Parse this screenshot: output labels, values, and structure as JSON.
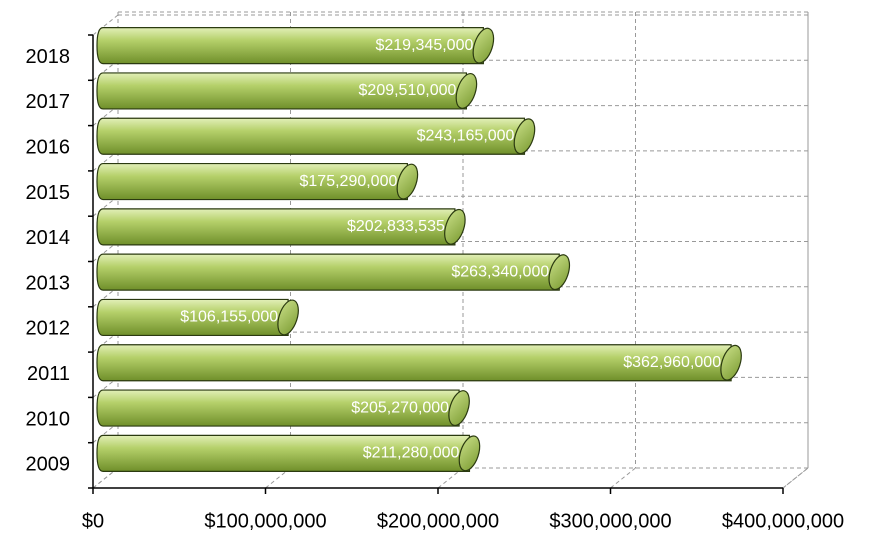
{
  "chart_data": {
    "type": "bar",
    "orientation": "horizontal",
    "categories": [
      "2009",
      "2010",
      "2011",
      "2012",
      "2013",
      "2014",
      "2015",
      "2016",
      "2017",
      "2018"
    ],
    "values": [
      211280000,
      205270000,
      362960000,
      106155000,
      263340000,
      202833535,
      175290000,
      243165000,
      209510000,
      219345000
    ],
    "value_labels": [
      "$211,280,000",
      "$205,270,000",
      "$362,960,000",
      "$106,155,000",
      "$263,340,000",
      "$202,833,535",
      "$175,290,000",
      "$243,165,000",
      "$209,510,000",
      "$219,345,000"
    ],
    "color": "#a8c55a",
    "xlim": [
      0,
      400000000
    ],
    "xticks": [
      {
        "value": 0,
        "label": "$0"
      },
      {
        "value": 100000000,
        "label": "$100,000,000"
      },
      {
        "value": 200000000,
        "label": "$200,000,000"
      },
      {
        "value": 300000000,
        "label": "$300,000,000"
      },
      {
        "value": 400000000,
        "label": "$400,000,000"
      }
    ],
    "grid": true
  }
}
